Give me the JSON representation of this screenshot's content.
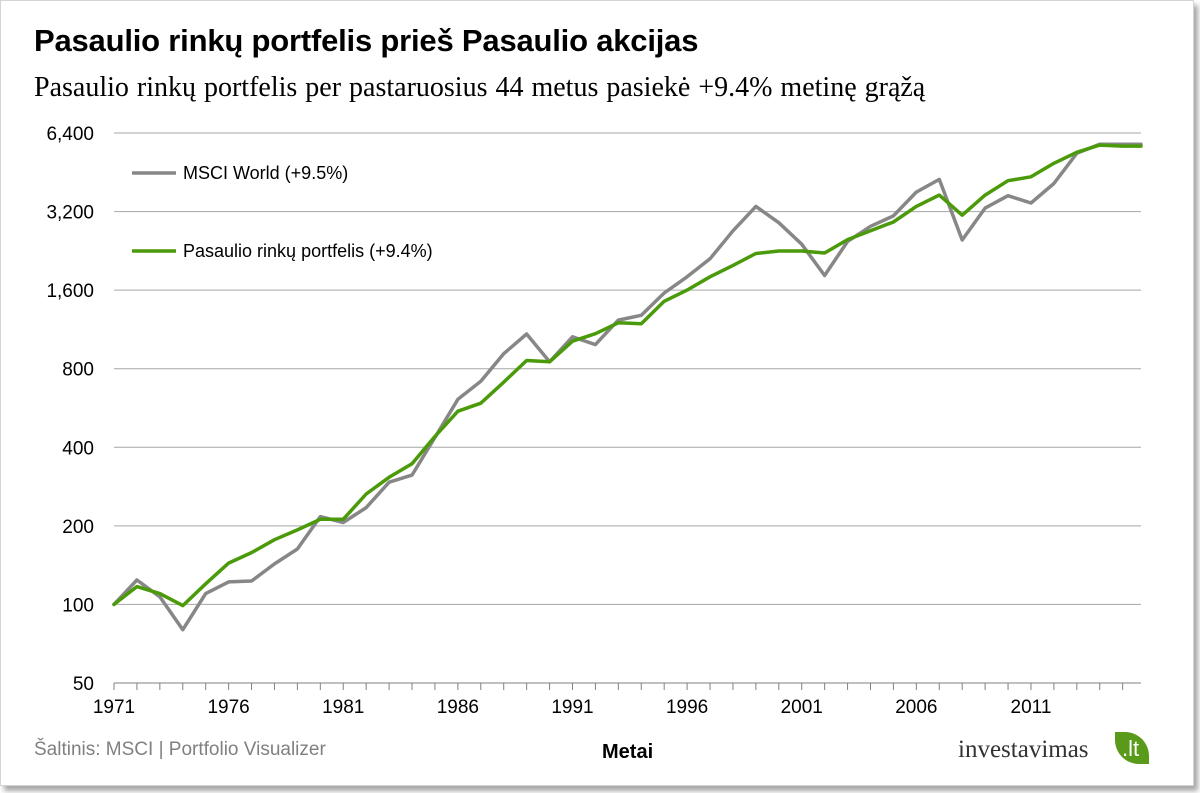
{
  "title": "Pasaulio rinkų portfelis prieš Pasaulio akcijas",
  "subtitle": "Pasaulio rinkų portfelis per pastaruosius  44 metus pasiekė +9.4% metinę grąžą",
  "source": "Šaltinis: MSCI | Portfolio Visualizer",
  "logo": {
    "word": "investavimas",
    "suffix": ".lt",
    "accent": "#5a9a1a"
  },
  "chart_data": {
    "type": "line",
    "xlabel": "Metai",
    "ylabel": "",
    "yscale": "log2",
    "ylim": [
      50,
      6400
    ],
    "xlim": [
      1971,
      2015.8
    ],
    "yticks": [
      50,
      100,
      200,
      400,
      800,
      1600,
      3200,
      6400
    ],
    "ytick_labels": [
      "50",
      "100",
      "200",
      "400",
      "800",
      "1,600",
      "3,200",
      "6,400"
    ],
    "xticks": [
      1971,
      1976,
      1981,
      1986,
      1991,
      1996,
      2001,
      2006,
      2011
    ],
    "xtick_labels": [
      "1971",
      "1976",
      "1981",
      "1986",
      "1991",
      "1996",
      "2001",
      "2006",
      "2011"
    ],
    "grid": "horizontal",
    "legend": "top-left",
    "x": [
      1971,
      1972,
      1973,
      1974,
      1975,
      1976,
      1977,
      1978,
      1979,
      1980,
      1981,
      1982,
      1983,
      1984,
      1985,
      1986,
      1987,
      1988,
      1989,
      1990,
      1991,
      1992,
      1993,
      1994,
      1995,
      1996,
      1997,
      1998,
      1999,
      2000,
      2001,
      2002,
      2003,
      2004,
      2005,
      2006,
      2007,
      2008,
      2009,
      2010,
      2011,
      2012,
      2013,
      2014,
      2015,
      2015.8
    ],
    "series": [
      {
        "name": "MSCI World (+9.5%)",
        "color": "#878787",
        "values": [
          100,
          124,
          107,
          80,
          110,
          122,
          123,
          143,
          163,
          217,
          206,
          235,
          294,
          313,
          436,
          611,
          716,
          913,
          1087,
          850,
          1060,
          990,
          1228,
          1282,
          1560,
          1800,
          2110,
          2700,
          3350,
          2900,
          2400,
          1820,
          2460,
          2810,
          3080,
          3800,
          4250,
          2490,
          3300,
          3680,
          3450,
          4100,
          5350,
          5800,
          5800,
          5800
        ]
      },
      {
        "name": "Pasaulio rinkų portfelis (+9.4%)",
        "color": "#4a9a0a",
        "values": [
          100,
          117,
          110,
          99,
          120,
          144,
          158,
          177,
          193,
          212,
          212,
          265,
          307,
          346,
          440,
          550,
          590,
          710,
          860,
          850,
          1020,
          1090,
          1200,
          1190,
          1450,
          1600,
          1800,
          1990,
          2210,
          2260,
          2260,
          2220,
          2500,
          2700,
          2920,
          3350,
          3700,
          3100,
          3700,
          4200,
          4350,
          4900,
          5400,
          5750,
          5700,
          5700
        ]
      }
    ]
  }
}
